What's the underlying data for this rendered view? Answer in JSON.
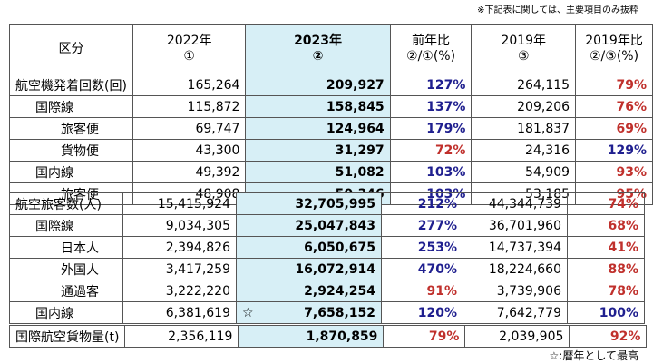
{
  "notes": {
    "top": "※下記表に関しては、主要項目のみ抜粋",
    "bottom": "☆:暦年として最高"
  },
  "header": {
    "col0": "区分",
    "col1_line1": "2022年",
    "col1_line2": "①",
    "col2_line1": "2023年",
    "col2_line2": "②",
    "col3_line1": "前年比",
    "col3_line2": "②/①(%)",
    "col4_line1": "2019年",
    "col4_line2": "③",
    "col5_line1": "2019年比",
    "col5_line2": "②/③(%)"
  },
  "section1": [
    {
      "label": "航空機発着回数(回)",
      "v2022": "165,264",
      "v2023": "209,927",
      "yoy": "127%",
      "v2019": "264,115",
      "vs2019": "79%",
      "yoy_color": "blue",
      "vs_color": "red"
    },
    {
      "label": "国際線",
      "v2022": "115,872",
      "v2023": "158,845",
      "yoy": "137%",
      "v2019": "209,206",
      "vs2019": "76%",
      "yoy_color": "blue",
      "vs_color": "red"
    },
    {
      "label": "旅客便",
      "v2022": "69,747",
      "v2023": "124,964",
      "yoy": "179%",
      "v2019": "181,837",
      "vs2019": "69%",
      "yoy_color": "blue",
      "vs_color": "red"
    },
    {
      "label": "貨物便",
      "v2022": "43,300",
      "v2023": "31,297",
      "yoy": "72%",
      "v2019": "24,316",
      "vs2019": "129%",
      "yoy_color": "red",
      "vs_color": "blue"
    },
    {
      "label": "国内線",
      "v2022": "49,392",
      "v2023": "51,082",
      "yoy": "103%",
      "v2019": "54,909",
      "vs2019": "93%",
      "yoy_color": "blue",
      "vs_color": "red"
    },
    {
      "label": "旅客便",
      "v2022": "48,908",
      "v2023": "50,346",
      "yoy": "103%",
      "v2019": "53,185",
      "vs2019": "95%",
      "yoy_color": "blue",
      "vs_color": "red"
    }
  ],
  "section2": [
    {
      "label": "航空旅客数(人)",
      "v2022": "15,415,924",
      "v2023": "32,705,995",
      "yoy": "212%",
      "v2019": "44,344,739",
      "vs2019": "74%",
      "yoy_color": "blue",
      "vs_color": "red"
    },
    {
      "label": "国際線",
      "v2022": "9,034,305",
      "v2023": "25,047,843",
      "yoy": "277%",
      "v2019": "36,701,960",
      "vs2019": "68%",
      "yoy_color": "blue",
      "vs_color": "red"
    },
    {
      "label": "日本人",
      "v2022": "2,394,826",
      "v2023": "6,050,675",
      "yoy": "253%",
      "v2019": "14,737,394",
      "vs2019": "41%",
      "yoy_color": "blue",
      "vs_color": "red"
    },
    {
      "label": "外国人",
      "v2022": "3,417,259",
      "v2023": "16,072,914",
      "yoy": "470%",
      "v2019": "18,224,660",
      "vs2019": "88%",
      "yoy_color": "blue",
      "vs_color": "red"
    },
    {
      "label": "通過客",
      "v2022": "3,222,220",
      "v2023": "2,924,254",
      "yoy": "91%",
      "v2019": "3,739,906",
      "vs2019": "78%",
      "yoy_color": "red",
      "vs_color": "red"
    },
    {
      "label": "国内線",
      "v2022": "6,381,619",
      "v2023": "7,658,152",
      "star": "☆",
      "yoy": "120%",
      "v2019": "7,642,779",
      "vs2019": "100%",
      "yoy_color": "blue",
      "vs_color": "blue"
    }
  ],
  "section3": [
    {
      "label": "国際航空貨物量(t)",
      "v2022": "2,356,119",
      "v2023": "1,870,859",
      "yoy": "79%",
      "v2019": "2,039,905",
      "vs2019": "92%",
      "yoy_color": "red",
      "vs_color": "red"
    }
  ]
}
